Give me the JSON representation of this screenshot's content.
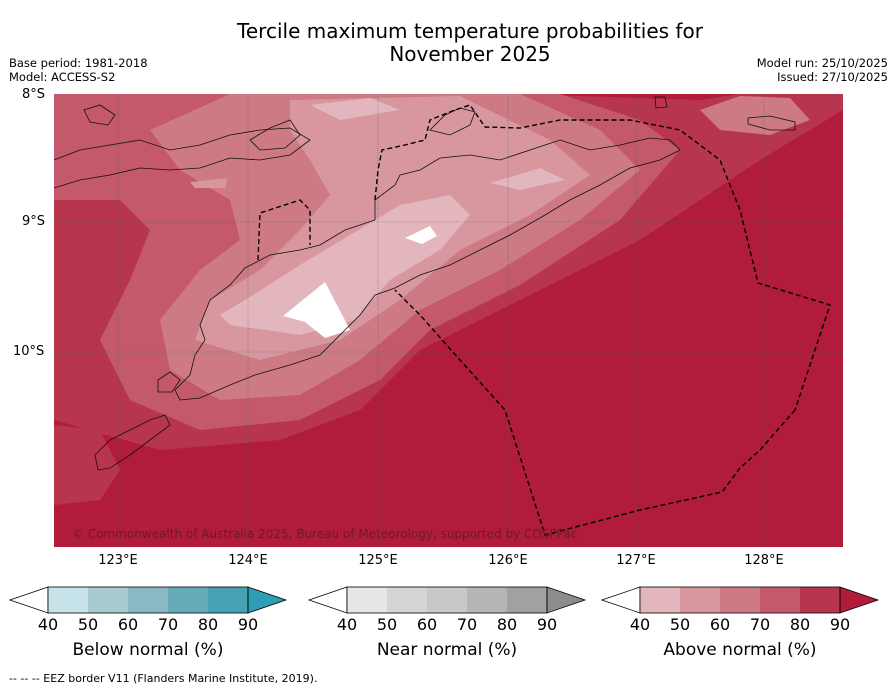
{
  "title_line1": "Tercile maximum temperature probabilities for",
  "title_line2": "November 2025",
  "meta_left": [
    "Base period: 1981-2018",
    "Model: ACCESS-S2"
  ],
  "meta_right": [
    "Model run: 25/10/2025",
    "Issued: 27/10/2025"
  ],
  "lat_labels": [
    "8°S",
    "9°S",
    "10°S"
  ],
  "lon_labels": [
    "123°E",
    "124°E",
    "125°E",
    "126°E",
    "127°E",
    "128°E"
  ],
  "copyright": "© Commonwealth of Australia 2025, Bureau of Meteorology, supported by COSPPac",
  "colorbars": [
    {
      "name": "below",
      "title": "Below normal (%)",
      "ticks": [
        "40",
        "50",
        "60",
        "70",
        "80",
        "90"
      ],
      "colors": [
        "#ffffff",
        "#c6e3ea",
        "#a7c9d0",
        "#8ab9c4",
        "#66a9b9",
        "#45a1b3",
        "#2f9db3"
      ]
    },
    {
      "name": "near",
      "title": "Near normal (%)",
      "ticks": [
        "40",
        "50",
        "60",
        "70",
        "80",
        "90"
      ],
      "colors": [
        "#ffffff",
        "#e6e6e6",
        "#d5d5d5",
        "#c8c8c8",
        "#b5b5b5",
        "#a1a1a1",
        "#8c8c8c"
      ]
    },
    {
      "name": "above",
      "title": "Above normal (%)",
      "ticks": [
        "40",
        "50",
        "60",
        "70",
        "80",
        "90"
      ],
      "colors": [
        "#ffffff",
        "#e3b5bd",
        "#d8969f",
        "#ce7a84",
        "#c3596a",
        "#b8364d",
        "#b01c3a"
      ]
    }
  ],
  "legend_note": "--  --  -- EEZ border V11 (Flanders Marine Institute, 2019)."
}
